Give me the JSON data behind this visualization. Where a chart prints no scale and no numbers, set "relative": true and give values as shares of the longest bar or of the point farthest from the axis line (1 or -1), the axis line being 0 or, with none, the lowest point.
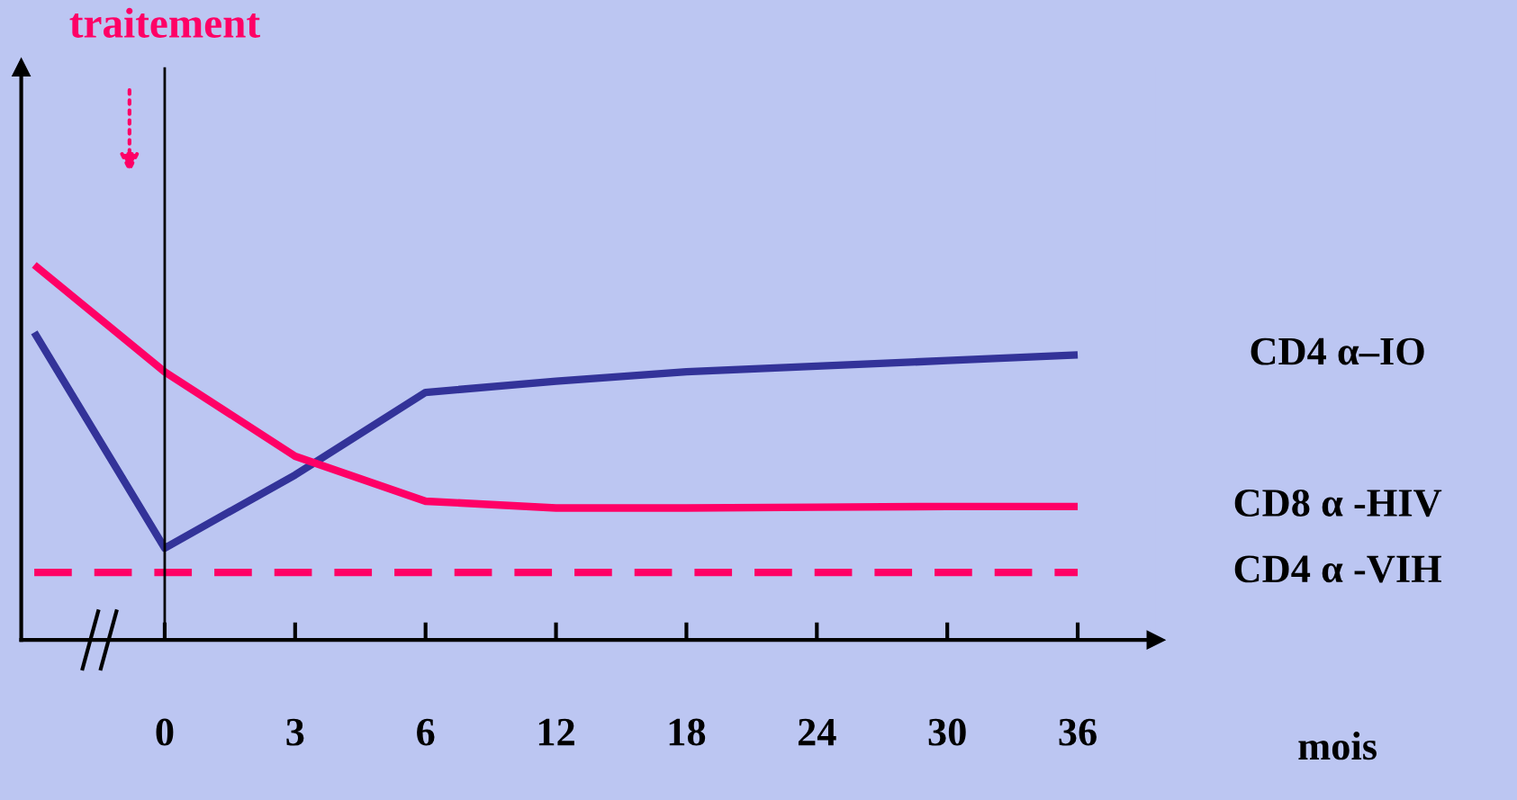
{
  "chart_data": {
    "type": "line",
    "relative": true,
    "xlabel": "mois",
    "categories": [
      null,
      "0",
      "3",
      "6",
      "12",
      "18",
      "24",
      "30",
      "36"
    ],
    "series": [
      {
        "name": "CD4 α–IO",
        "color": "#333399",
        "values": [
          0.82,
          0.245,
          0.44,
          0.66,
          0.69,
          0.715,
          0.73,
          0.745,
          0.76
        ]
      },
      {
        "name": "CD8 α -HIV",
        "color": "#ff0066",
        "values": [
          1.0,
          0.715,
          0.49,
          0.37,
          0.352,
          0.352,
          0.354,
          0.356,
          0.356
        ]
      },
      {
        "name": "CD4 α -VIH",
        "color": "#ff0066",
        "line_style": "dashed",
        "values": [
          0.18,
          0.18,
          0.18,
          0.18,
          0.18,
          0.18,
          0.18,
          0.18,
          0.18
        ]
      }
    ],
    "ref_lines": [
      {
        "axis": "x",
        "value": "0",
        "color": "#000000"
      }
    ],
    "annotations": [
      "traitement"
    ],
    "grid": false,
    "legend": false,
    "marker": "none"
  }
}
